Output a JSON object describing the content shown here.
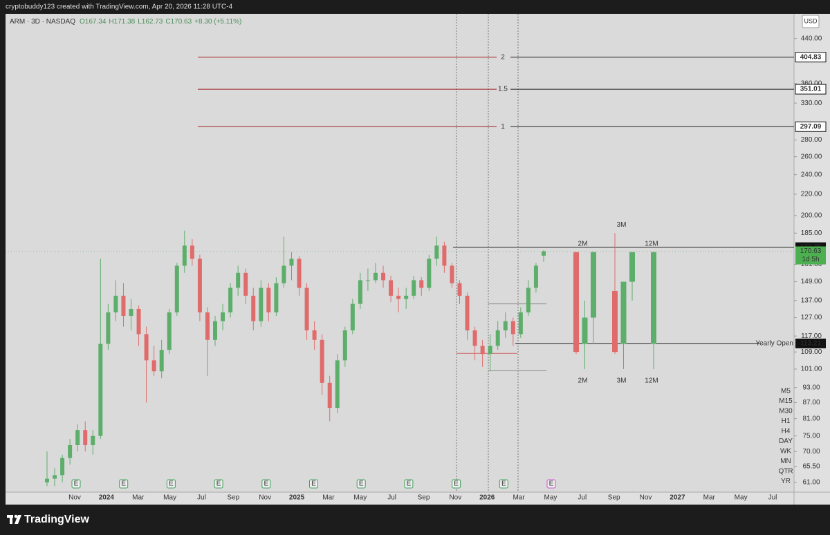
{
  "header": {
    "credit": "cryptobuddy123 created with TradingView.com, Apr 20, 2026 11:28 UTC-4",
    "symbol": "ARM · 3D · NASDAQ",
    "ohlc": [
      "O167.34",
      "H171.38",
      "L162.73",
      "C170.63"
    ],
    "change": "+8.30 (+5.11%)",
    "currency": "USD"
  },
  "brand": "TradingView",
  "chart_data": {
    "type": "candlestick",
    "log_scale": true,
    "ylim": [
      58.4,
      491
    ],
    "up_color": "#5cae6a",
    "down_color": "#e06b6b",
    "yticks": [
      {
        "value": 440,
        "label": "440.00"
      },
      {
        "value": 360,
        "label": "360.00"
      },
      {
        "value": 330,
        "label": "330.00"
      },
      {
        "value": 280,
        "label": "280.00"
      },
      {
        "value": 260,
        "label": "260.00"
      },
      {
        "value": 240,
        "label": "240.00"
      },
      {
        "value": 220,
        "label": "220.00"
      },
      {
        "value": 200,
        "label": "200.00"
      },
      {
        "value": 185,
        "label": "185.00"
      },
      {
        "value": 161,
        "label": "161.00"
      },
      {
        "value": 149,
        "label": "149.00"
      },
      {
        "value": 137,
        "label": "137.00"
      },
      {
        "value": 127,
        "label": "127.00"
      },
      {
        "value": 117,
        "label": "117.00"
      },
      {
        "value": 109,
        "label": "109.00"
      },
      {
        "value": 101,
        "label": "101.00"
      },
      {
        "value": 93,
        "label": "93.00"
      },
      {
        "value": 87,
        "label": "87.00"
      },
      {
        "value": 81,
        "label": "81.00"
      },
      {
        "value": 75,
        "label": "75.00"
      },
      {
        "value": 70,
        "label": "70.00"
      },
      {
        "value": 65.5,
        "label": "65.50"
      },
      {
        "value": 61,
        "label": "61.00"
      }
    ],
    "x_labels": [
      "Nov",
      "2024",
      "Mar",
      "May",
      "Jul",
      "Sep",
      "Nov",
      "2025",
      "Mar",
      "May",
      "Jul",
      "Sep",
      "Nov",
      "2026",
      "Mar",
      "May",
      "Jul",
      "Sep",
      "Nov",
      "2027",
      "Mar",
      "May",
      "Jul"
    ],
    "candles": [
      [
        61,
        70,
        60,
        62
      ],
      [
        62,
        65,
        60,
        63
      ],
      [
        63,
        69,
        61,
        68
      ],
      [
        68,
        74,
        66,
        72
      ],
      [
        72,
        79,
        70,
        77
      ],
      [
        77,
        80,
        70,
        72
      ],
      [
        72,
        77,
        69,
        75
      ],
      [
        75,
        165,
        74,
        113
      ],
      [
        113,
        135,
        110,
        130
      ],
      [
        130,
        150,
        125,
        140
      ],
      [
        140,
        148,
        122,
        128
      ],
      [
        128,
        138,
        120,
        132
      ],
      [
        132,
        134,
        112,
        118
      ],
      [
        118,
        122,
        87,
        105
      ],
      [
        105,
        112,
        98,
        100
      ],
      [
        100,
        115,
        97,
        110
      ],
      [
        110,
        132,
        108,
        130
      ],
      [
        130,
        162,
        128,
        160
      ],
      [
        160,
        187,
        155,
        175
      ],
      [
        175,
        180,
        160,
        165
      ],
      [
        165,
        168,
        125,
        130
      ],
      [
        130,
        133,
        98,
        115
      ],
      [
        115,
        128,
        112,
        125
      ],
      [
        125,
        135,
        120,
        130
      ],
      [
        130,
        148,
        127,
        145
      ],
      [
        145,
        160,
        140,
        155
      ],
      [
        155,
        158,
        135,
        140
      ],
      [
        140,
        145,
        120,
        125
      ],
      [
        125,
        150,
        122,
        145
      ],
      [
        145,
        148,
        125,
        130
      ],
      [
        130,
        152,
        128,
        148
      ],
      [
        148,
        182,
        145,
        160
      ],
      [
        160,
        170,
        150,
        165
      ],
      [
        165,
        167,
        140,
        145
      ],
      [
        145,
        148,
        115,
        120
      ],
      [
        120,
        125,
        110,
        115
      ],
      [
        115,
        118,
        90,
        95
      ],
      [
        95,
        98,
        80,
        85
      ],
      [
        85,
        108,
        83,
        105
      ],
      [
        105,
        122,
        102,
        120
      ],
      [
        120,
        138,
        118,
        135
      ],
      [
        135,
        155,
        132,
        150
      ],
      [
        150,
        158,
        143,
        150
      ],
      [
        150,
        162,
        148,
        155
      ],
      [
        155,
        160,
        145,
        150
      ],
      [
        150,
        153,
        136,
        140
      ],
      [
        140,
        145,
        130,
        138
      ],
      [
        138,
        145,
        132,
        140
      ],
      [
        140,
        153,
        138,
        150
      ],
      [
        150,
        152,
        140,
        145
      ],
      [
        145,
        168,
        143,
        165
      ],
      [
        165,
        182,
        160,
        175
      ],
      [
        175,
        178,
        155,
        160
      ],
      [
        160,
        162,
        145,
        148
      ],
      [
        148,
        150,
        135,
        140
      ],
      [
        140,
        142,
        115,
        120
      ],
      [
        120,
        122,
        105,
        112
      ],
      [
        112,
        115,
        102,
        108
      ],
      [
        108,
        118,
        100,
        112
      ],
      [
        112,
        125,
        110,
        120
      ],
      [
        120,
        130,
        116,
        125
      ],
      [
        125,
        127,
        112,
        118
      ],
      [
        118,
        133,
        116,
        130
      ],
      [
        130,
        150,
        128,
        145
      ],
      [
        145,
        162,
        142,
        160
      ],
      [
        167.34,
        171.38,
        162.73,
        170.63
      ]
    ],
    "fib_levels": [
      {
        "name": "2",
        "value": 404.83
      },
      {
        "name": "1.5",
        "value": 351.01
      },
      {
        "name": "1",
        "value": 297.09
      }
    ],
    "levels": [
      {
        "value": 173.75
      },
      {
        "name": "Yearly Open",
        "value": 113.21
      }
    ],
    "current": {
      "value": 170.63,
      "countdown": "1d 5h"
    },
    "zone": {
      "high": 135,
      "low": 100.3,
      "mid": 108.3
    },
    "projections": [
      {
        "label": "2M",
        "candles": [
          [
            170,
            170,
            108,
            109
          ],
          [
            113,
            137,
            101,
            127
          ],
          [
            127,
            170,
            113,
            170
          ]
        ]
      },
      {
        "label": "3M",
        "candles": [
          [
            143,
            185,
            108,
            109
          ],
          [
            113,
            149,
            101,
            149
          ],
          [
            149,
            170,
            137,
            170
          ]
        ]
      },
      {
        "label": "12M",
        "candles": [
          [
            113,
            170,
            101,
            170
          ]
        ]
      }
    ],
    "earnings": [
      {
        "label": "E",
        "color": "#3aa05a"
      },
      {
        "label": "E",
        "color": "#3aa05a"
      },
      {
        "label": "E",
        "color": "#3aa05a"
      },
      {
        "label": "E",
        "color": "#3aa05a"
      },
      {
        "label": "E",
        "color": "#3aa05a"
      },
      {
        "label": "E",
        "color": "#3aa05a"
      },
      {
        "label": "E",
        "color": "#3aa05a"
      },
      {
        "label": "E",
        "color": "#3aa05a"
      },
      {
        "label": "E",
        "color": "#3aa05a"
      },
      {
        "label": "E",
        "color": "#3aa05a"
      },
      {
        "label": "E",
        "color": "#d04fd0"
      }
    ],
    "timeframes": [
      {
        "label": "M5",
        "color": "#333333"
      },
      {
        "label": "M15",
        "color": "#333333"
      },
      {
        "label": "M30",
        "color": "#333333"
      },
      {
        "label": "H1",
        "color": "#333333"
      },
      {
        "label": "H4",
        "color": "#333333"
      },
      {
        "label": "DAY",
        "color": "#333333"
      },
      {
        "label": "WK",
        "color": "#4caf50"
      },
      {
        "label": "MN",
        "color": "#4caf50"
      },
      {
        "label": "QTR",
        "color": "#4caf50"
      },
      {
        "label": "YR",
        "color": "#4caf50"
      }
    ]
  }
}
